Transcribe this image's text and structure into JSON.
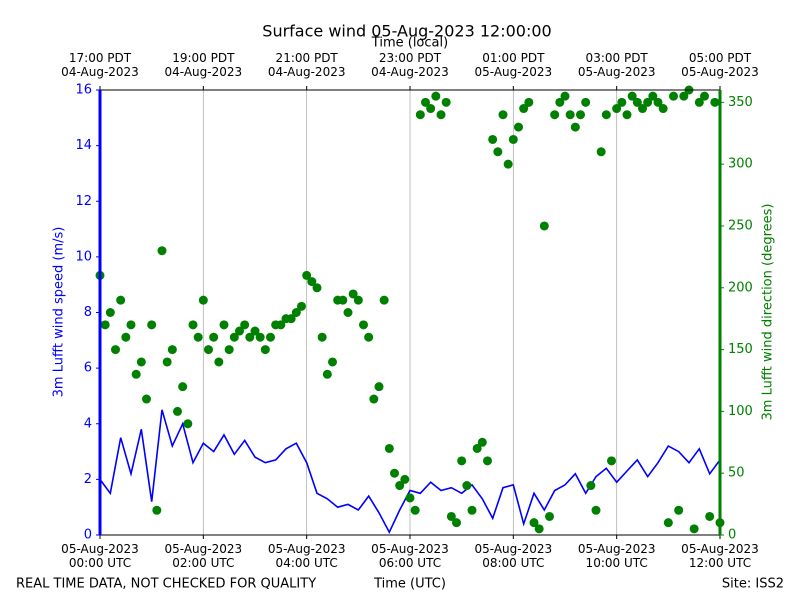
{
  "chart_data": {
    "type": "line-scatter",
    "title": "Surface wind 05-Aug-2023 12:00:00",
    "xlabel": "Time (UTC)",
    "x2label": "Time (local)",
    "ylabel": "3m Lufft wind speed (m/s)",
    "y2label": "3m Lufft wind direction (degrees)",
    "footer_left": "REAL TIME DATA, NOT CHECKED FOR QUALITY",
    "footer_right": "Site: ISS2",
    "xlim": [
      0,
      12
    ],
    "xticks": [
      {
        "value": 0,
        "label": "05-Aug-2023\n00:00 UTC"
      },
      {
        "value": 2,
        "label": "05-Aug-2023\n02:00 UTC"
      },
      {
        "value": 4,
        "label": "05-Aug-2023\n04:00 UTC"
      },
      {
        "value": 6,
        "label": "05-Aug-2023\n06:00 UTC"
      },
      {
        "value": 8,
        "label": "05-Aug-2023\n08:00 UTC"
      },
      {
        "value": 10,
        "label": "05-Aug-2023\n10:00 UTC"
      },
      {
        "value": 12,
        "label": "05-Aug-2023\n12:00 UTC"
      }
    ],
    "x2ticks": [
      {
        "value": 0,
        "label": "17:00 PDT\n04-Aug-2023"
      },
      {
        "value": 2,
        "label": "19:00 PDT\n04-Aug-2023"
      },
      {
        "value": 4,
        "label": "21:00 PDT\n04-Aug-2023"
      },
      {
        "value": 6,
        "label": "23:00 PDT\n04-Aug-2023"
      },
      {
        "value": 8,
        "label": "01:00 PDT\n05-Aug-2023"
      },
      {
        "value": 10,
        "label": "03:00 PDT\n05-Aug-2023"
      },
      {
        "value": 12,
        "label": "05:00 PDT\n05-Aug-2023"
      }
    ],
    "ylim": [
      0,
      16
    ],
    "yticks": [
      0,
      2,
      4,
      6,
      8,
      10,
      12,
      14,
      16
    ],
    "y2lim": [
      0,
      360
    ],
    "y2ticks": [
      0,
      50,
      100,
      150,
      200,
      250,
      300,
      350
    ],
    "grid": true,
    "series": [
      {
        "kind": "line",
        "color": "#0000ff",
        "axis": "y",
        "x": [
          0,
          0.2,
          0.4,
          0.6,
          0.8,
          1,
          1.2,
          1.4,
          1.6,
          1.8,
          2,
          2.2,
          2.4,
          2.6,
          2.8,
          3,
          3.2,
          3.4,
          3.6,
          3.8,
          4,
          4.2,
          4.4,
          4.6,
          4.8,
          5,
          5.2,
          5.4,
          5.6,
          5.8,
          6,
          6.2,
          6.4,
          6.6,
          6.8,
          7,
          7.2,
          7.4,
          7.6,
          7.8,
          8,
          8.2,
          8.4,
          8.6,
          8.8,
          9,
          9.2,
          9.4,
          9.6,
          9.8,
          10,
          10.2,
          10.4,
          10.6,
          10.8,
          11,
          11.2,
          11.4,
          11.6,
          11.8,
          12
        ],
        "values": [
          2.0,
          1.5,
          3.5,
          2.2,
          3.8,
          1.2,
          4.5,
          3.2,
          4.0,
          2.6,
          3.3,
          3.0,
          3.6,
          2.9,
          3.4,
          2.8,
          2.6,
          2.7,
          3.1,
          3.3,
          2.6,
          1.5,
          1.3,
          1.0,
          1.1,
          0.9,
          1.4,
          0.8,
          0.1,
          0.9,
          1.6,
          1.5,
          1.9,
          1.6,
          1.7,
          1.5,
          1.8,
          1.3,
          0.6,
          1.7,
          1.8,
          0.4,
          1.5,
          0.9,
          1.6,
          1.8,
          2.2,
          1.5,
          2.1,
          2.4,
          1.9,
          2.3,
          2.7,
          2.1,
          2.6,
          3.2,
          3.0,
          2.6,
          3.1,
          2.2,
          2.7
        ]
      },
      {
        "kind": "scatter",
        "color": "#008000",
        "axis": "y2",
        "x": [
          0,
          0.1,
          0.2,
          0.3,
          0.4,
          0.5,
          0.6,
          0.7,
          0.8,
          0.9,
          1,
          1.1,
          1.2,
          1.3,
          1.4,
          1.5,
          1.6,
          1.7,
          1.8,
          1.9,
          2,
          2.1,
          2.2,
          2.3,
          2.4,
          2.5,
          2.6,
          2.7,
          2.8,
          2.9,
          3,
          3.1,
          3.2,
          3.3,
          3.4,
          3.5,
          3.6,
          3.7,
          3.8,
          3.9,
          4,
          4.1,
          4.2,
          4.3,
          4.4,
          4.5,
          4.6,
          4.7,
          4.8,
          4.9,
          5,
          5.1,
          5.2,
          5.3,
          5.4,
          5.5,
          5.6,
          5.7,
          5.8,
          5.9,
          6,
          6.1,
          6.2,
          6.3,
          6.4,
          6.5,
          6.6,
          6.7,
          6.8,
          6.9,
          7,
          7.1,
          7.2,
          7.3,
          7.4,
          7.5,
          7.6,
          7.7,
          7.8,
          7.9,
          8,
          8.1,
          8.2,
          8.3,
          8.4,
          8.5,
          8.6,
          8.7,
          8.8,
          8.9,
          9,
          9.1,
          9.2,
          9.3,
          9.4,
          9.5,
          9.6,
          9.7,
          9.8,
          9.9,
          10,
          10.1,
          10.2,
          10.3,
          10.4,
          10.5,
          10.6,
          10.7,
          10.8,
          10.9,
          11,
          11.1,
          11.2,
          11.3,
          11.4,
          11.5,
          11.6,
          11.7,
          11.8,
          11.9,
          12
        ],
        "values": [
          210,
          170,
          180,
          150,
          190,
          160,
          170,
          130,
          140,
          110,
          170,
          20,
          230,
          140,
          150,
          100,
          120,
          90,
          170,
          160,
          190,
          150,
          160,
          140,
          170,
          150,
          160,
          165,
          170,
          160,
          165,
          160,
          150,
          160,
          170,
          170,
          175,
          175,
          180,
          185,
          210,
          205,
          200,
          160,
          130,
          140,
          190,
          190,
          180,
          195,
          190,
          170,
          160,
          110,
          120,
          190,
          70,
          50,
          40,
          45,
          30,
          20,
          340,
          350,
          345,
          355,
          340,
          350,
          15,
          10,
          60,
          40,
          20,
          70,
          75,
          60,
          320,
          310,
          340,
          300,
          320,
          330,
          345,
          350,
          10,
          5,
          250,
          15,
          340,
          350,
          355,
          340,
          330,
          340,
          350,
          40,
          20,
          310,
          340,
          60,
          345,
          350,
          340,
          355,
          350,
          345,
          350,
          355,
          350,
          345,
          10,
          355,
          20,
          355,
          360,
          5,
          350,
          355,
          15,
          350,
          10
        ]
      }
    ]
  }
}
